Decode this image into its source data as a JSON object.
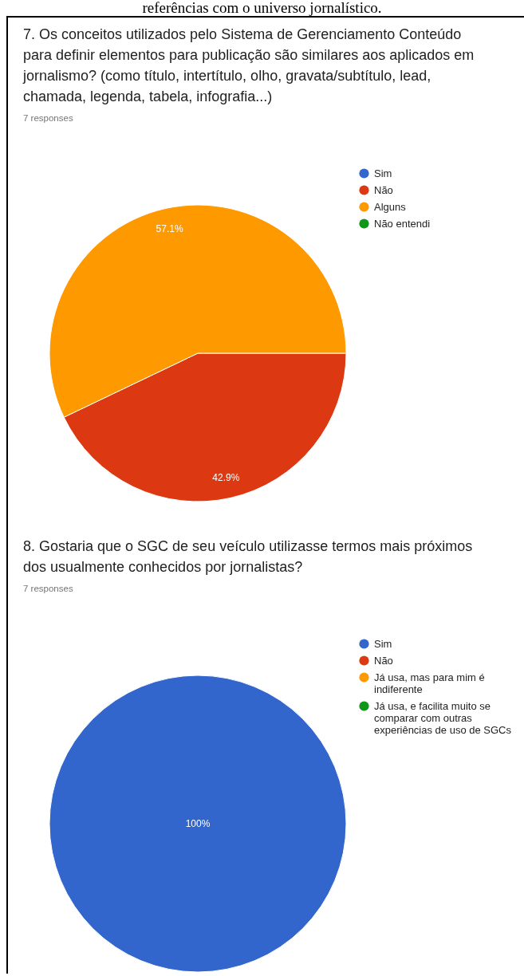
{
  "chart_data": [
    {
      "type": "pie",
      "title": "7. Os conceitos utilizados pelo Sistema de Gerenciamento Conteúdo para definir elementos para publicação são similares aos aplicados em jornalismo? (como título, intertítulo, olho, gravata/subtítulo, lead, chamada, legenda, tabela, infografia...)",
      "subtitle": "7 responses",
      "categories": [
        "Sim",
        "Não",
        "Alguns",
        "Não entendi"
      ],
      "values": [
        0,
        42.9,
        57.1,
        0
      ],
      "colors": [
        "#3366cc",
        "#dc3912",
        "#ff9900",
        "#109618"
      ],
      "value_labels": [
        null,
        "42.9%",
        "57.1%",
        null
      ],
      "legend": "top right",
      "annotations": [
        "referências com o universo jornalístico."
      ]
    },
    {
      "type": "pie",
      "title": "8. Gostaria que o SGC de seu veículo utilizasse termos mais próximos dos usualmente conhecidos por jornalistas?",
      "subtitle": "7 responses",
      "categories": [
        "Sim",
        "Não",
        "Já usa, mas para mim é indiferente",
        "Já usa, e facilita muito se comparar com outras experiências de uso de SGCs"
      ],
      "values": [
        100,
        0,
        0,
        0
      ],
      "colors": [
        "#3366cc",
        "#dc3912",
        "#ff9900",
        "#109618"
      ],
      "value_labels": [
        "100%",
        null,
        null,
        null
      ],
      "legend": "top right"
    }
  ]
}
